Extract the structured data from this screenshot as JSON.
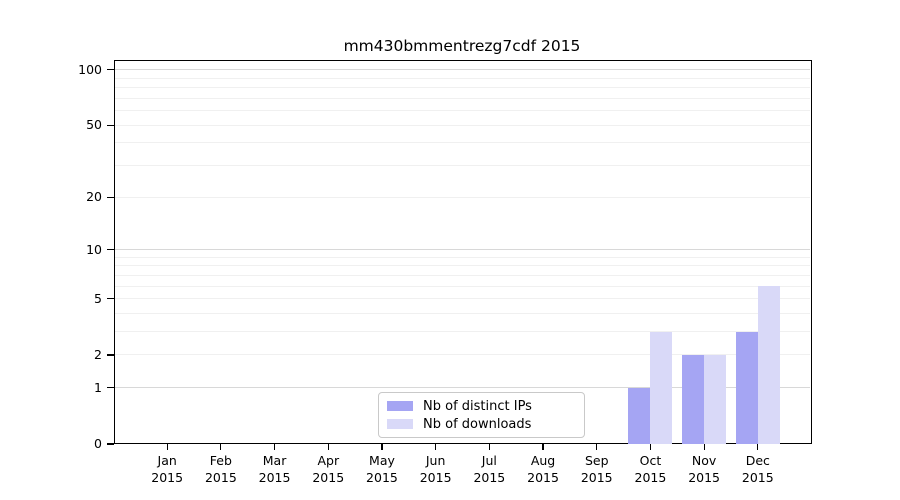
{
  "figure": {
    "background": "#ffffff"
  },
  "chart_data": {
    "type": "bar",
    "title": "mm430bmmentrezg7cdf 2015",
    "year": "2015",
    "months": [
      "Jan",
      "Feb",
      "Mar",
      "Apr",
      "May",
      "Jun",
      "Jul",
      "Aug",
      "Sep",
      "Oct",
      "Nov",
      "Dec"
    ],
    "series": [
      {
        "name": "Nb of distinct IPs",
        "color": "#a5a5f3",
        "values": [
          0,
          0,
          0,
          0,
          0,
          0,
          0,
          0,
          0,
          1,
          2,
          3
        ]
      },
      {
        "name": "Nb of downloads",
        "color": "#d9d9f8",
        "values": [
          0,
          0,
          0,
          0,
          0,
          0,
          0,
          0,
          0,
          3,
          2,
          6
        ]
      }
    ],
    "y_axis": {
      "scale": "log1p",
      "ylim": [
        0,
        113
      ],
      "tick_values": [
        0,
        1,
        2,
        5,
        10,
        20,
        50,
        100
      ],
      "major_gridlines": [
        1,
        10,
        100
      ],
      "minor_gridlines": [
        2,
        3,
        4,
        5,
        6,
        7,
        8,
        9,
        20,
        30,
        40,
        50,
        60,
        70,
        80,
        90
      ]
    },
    "x_axis": {
      "tick_label_format": "month-over-year"
    },
    "legend": {
      "position": "lower-center",
      "entries": [
        "Nb of distinct IPs",
        "Nb of downloads"
      ]
    },
    "grid": true
  },
  "colors": {
    "spine": "#000000",
    "major_grid": "#d8d8d8",
    "minor_grid": "#f0f0f0",
    "text": "#000000",
    "legend_border": "#c9c9c9"
  }
}
